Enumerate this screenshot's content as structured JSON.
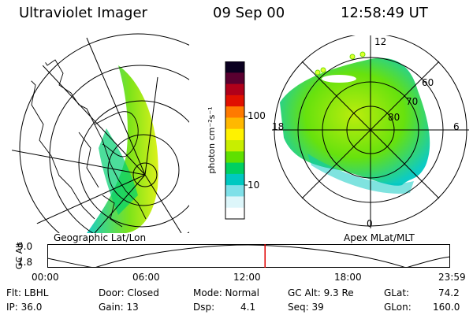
{
  "header": {
    "instrument": "Ultraviolet Imager",
    "date": "09 Sep 00",
    "time": "12:58:49 UT"
  },
  "left_panel": {
    "caption": "Geographic Lat/Lon"
  },
  "right_panel": {
    "caption": "Apex MLat/MLT",
    "mlt_labels": {
      "top": "12",
      "left": "18",
      "right": "6",
      "bottom": "0"
    },
    "lat_labels": [
      "60",
      "70",
      "80"
    ]
  },
  "colorbar": {
    "unit_label": "photon cm⁻²s⁻¹",
    "ticks": [
      "100",
      "10"
    ],
    "colors": [
      "#0b0020",
      "#5a0030",
      "#b0001a",
      "#e01000",
      "#ff7a00",
      "#ffb800",
      "#fff200",
      "#c8ee00",
      "#5fe000",
      "#00d060",
      "#00c8c0",
      "#7fe0e8",
      "#ddf6fa",
      "#ffffff"
    ]
  },
  "timeline": {
    "ylabel": "GC Alt",
    "yticks": [
      "9.0",
      "1.8"
    ],
    "xticks": [
      "00:00",
      "06:00",
      "12:00",
      "18:00",
      "23:59"
    ],
    "current_time_fraction": 0.5406
  },
  "info": {
    "row1": {
      "flt": "Flt: LBHL",
      "door": "Door: Closed",
      "mode": "Mode: Normal",
      "gcalt": "GC Alt: 9.3 Re",
      "glat": "GLat:",
      "glat_val": "74.2"
    },
    "row2": {
      "ip": "IP: 36.0",
      "gain": "Gain: 13",
      "dsp": "Dsp:",
      "dsp_val": "4.1",
      "seq": "Seq: 39",
      "glon": "GLon:",
      "glon_val": "160.0"
    }
  },
  "colors": {
    "accent_red": "#e00000",
    "aurora_green": "#6fe000",
    "aurora_cyan": "#00c8c0"
  }
}
